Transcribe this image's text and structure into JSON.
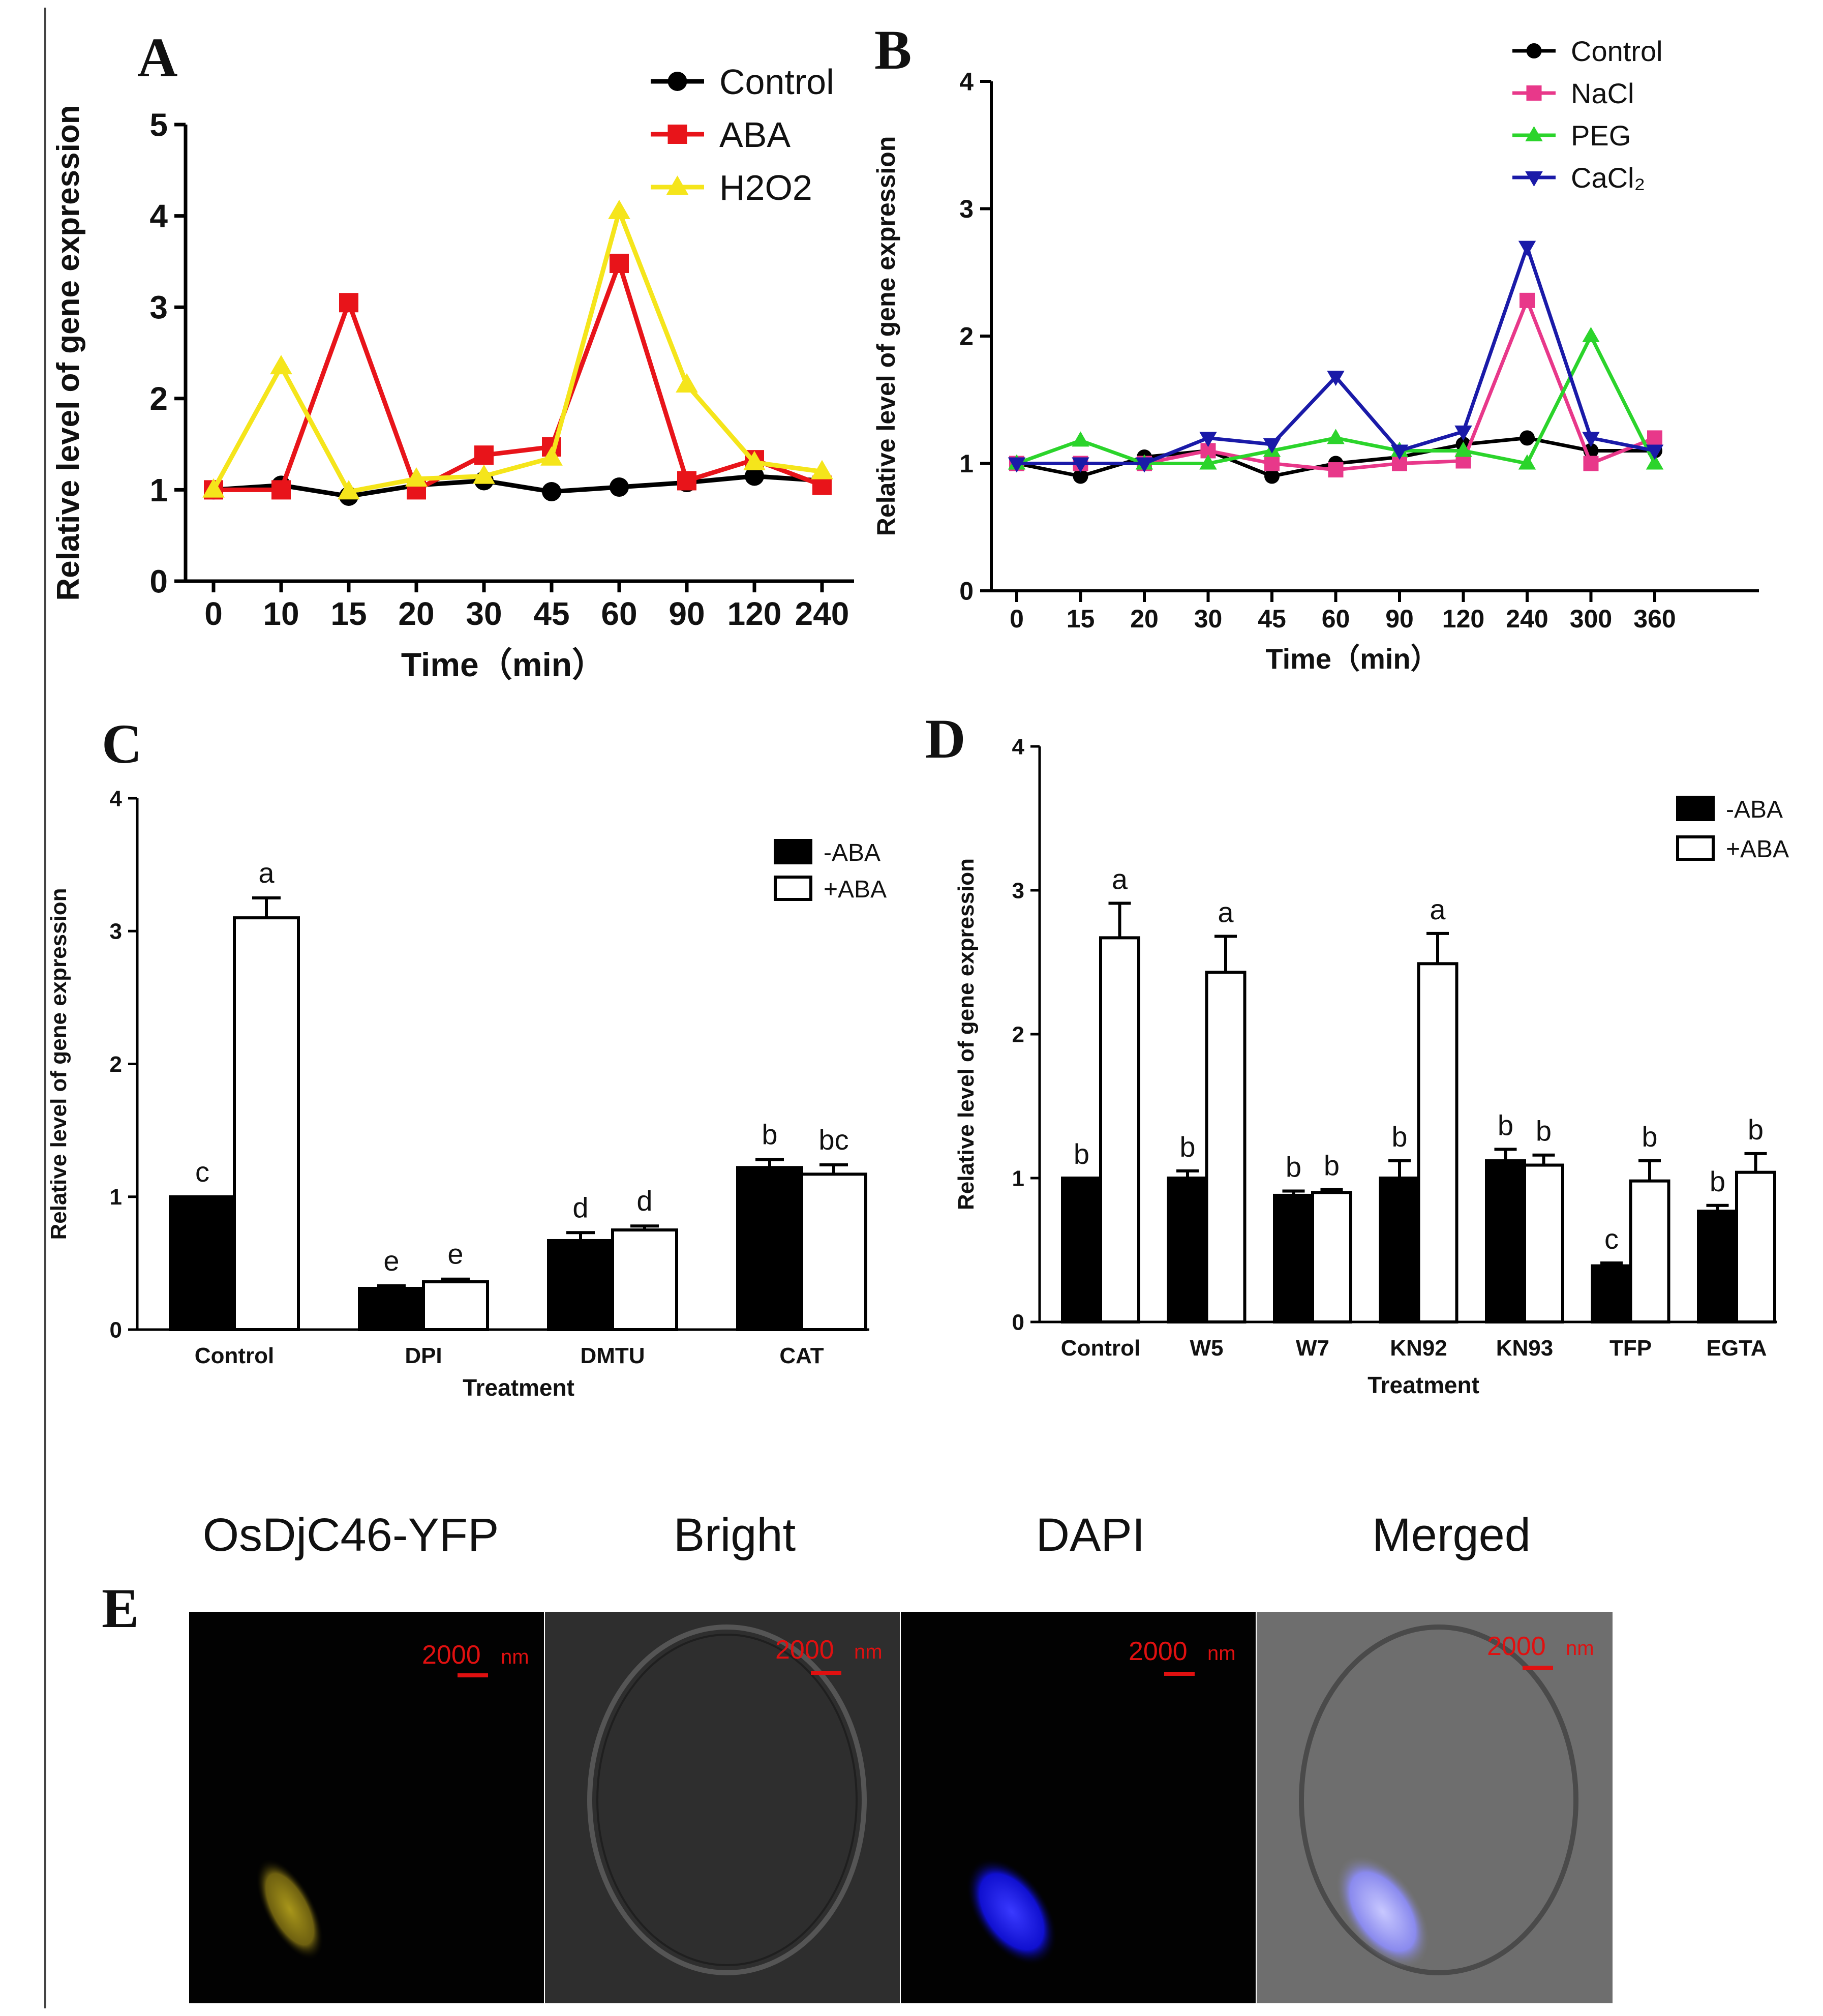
{
  "chart_data": [
    {
      "panel": "A",
      "type": "line",
      "xlabel": "Time（min）",
      "ylabel": "Relative level of gene expression",
      "categories": [
        "0",
        "10",
        "15",
        "20",
        "30",
        "45",
        "60",
        "90",
        "120",
        "240"
      ],
      "yticks": [
        "0",
        "1",
        "2",
        "3",
        "4",
        "5"
      ],
      "ylim": [
        0,
        5
      ],
      "legend_position": "top-right",
      "series": [
        {
          "name": "Control",
          "color": "#000000",
          "marker": "circle",
          "values": [
            1.0,
            1.05,
            0.93,
            1.05,
            1.1,
            0.98,
            1.03,
            1.08,
            1.15,
            1.1
          ]
        },
        {
          "name": "ABA",
          "color": "#e8141a",
          "marker": "square",
          "values": [
            1.0,
            1.0,
            3.05,
            1.0,
            1.38,
            1.47,
            3.48,
            1.1,
            1.33,
            1.05
          ]
        },
        {
          "name": "H2O2",
          "color": "#f5e51b",
          "marker": "triangle-up",
          "values": [
            1.0,
            2.35,
            0.98,
            1.12,
            1.15,
            1.35,
            4.05,
            2.15,
            1.3,
            1.2
          ]
        }
      ]
    },
    {
      "panel": "B",
      "type": "line",
      "xlabel": "Time（min）",
      "ylabel": "Relative level of gene expression",
      "categories": [
        "0",
        "15",
        "20",
        "30",
        "45",
        "60",
        "90",
        "120",
        "240",
        "300",
        "360"
      ],
      "yticks": [
        "0",
        "1",
        "2",
        "3",
        "4"
      ],
      "ylim": [
        0,
        4
      ],
      "legend_position": "top-right",
      "series": [
        {
          "name": "Control",
          "color": "#000000",
          "marker": "circle",
          "values": [
            1.0,
            0.9,
            1.05,
            1.1,
            0.9,
            1.0,
            1.05,
            1.15,
            1.2,
            1.1,
            1.1
          ]
        },
        {
          "name": "NaCl",
          "color": "#e8388a",
          "marker": "square",
          "values": [
            1.0,
            1.0,
            1.0,
            1.1,
            1.0,
            0.95,
            1.0,
            1.02,
            2.28,
            1.0,
            1.2
          ]
        },
        {
          "name": "PEG",
          "color": "#2bd42b",
          "marker": "triangle-up",
          "values": [
            1.0,
            1.18,
            1.0,
            1.0,
            1.1,
            1.2,
            1.1,
            1.1,
            1.0,
            2.0,
            1.0
          ]
        },
        {
          "name": "CaCl2",
          "color": "#1a1aa8",
          "marker": "triangle-down",
          "values": [
            1.0,
            1.0,
            1.0,
            1.2,
            1.15,
            1.68,
            1.1,
            1.25,
            2.7,
            1.2,
            1.1
          ]
        }
      ],
      "legend_labels": [
        "Control",
        "NaCl",
        "PEG",
        "CaCl₂"
      ]
    },
    {
      "panel": "C",
      "type": "bar",
      "xlabel": "Treatment",
      "ylabel": "Relative level of gene expression",
      "categories": [
        "Control",
        "DPI",
        "DMTU",
        "CAT"
      ],
      "yticks": [
        "0",
        "1",
        "2",
        "3",
        "4"
      ],
      "ylim": [
        0,
        4
      ],
      "legend_position": "top-right",
      "series": [
        {
          "name": "-ABA",
          "fill": "#000000",
          "values": [
            1.0,
            0.31,
            0.67,
            1.22
          ],
          "errors": [
            0.0,
            0.02,
            0.06,
            0.06
          ],
          "letters": [
            "c",
            "e",
            "d",
            "b"
          ]
        },
        {
          "name": "+ABA",
          "fill": "#ffffff",
          "values": [
            3.1,
            0.36,
            0.75,
            1.17
          ],
          "errors": [
            0.15,
            0.02,
            0.03,
            0.07
          ],
          "letters": [
            "a",
            "e",
            "d",
            "bc"
          ]
        }
      ]
    },
    {
      "panel": "D",
      "type": "bar",
      "xlabel": "Treatment",
      "ylabel": "Relative level of gene expression",
      "categories": [
        "Control",
        "W5",
        "W7",
        "KN92",
        "KN93",
        "TFP",
        "EGTA"
      ],
      "yticks": [
        "0",
        "1",
        "2",
        "3",
        "4"
      ],
      "ylim": [
        0,
        4
      ],
      "legend_position": "top-right",
      "series": [
        {
          "name": "-ABA",
          "fill": "#000000",
          "values": [
            1.0,
            1.0,
            0.88,
            1.0,
            1.12,
            0.39,
            0.77
          ],
          "errors": [
            0.0,
            0.05,
            0.03,
            0.12,
            0.08,
            0.02,
            0.04
          ],
          "letters": [
            "b",
            "b",
            "b",
            "b",
            "b",
            "c",
            "b"
          ]
        },
        {
          "name": "+ABA",
          "fill": "#ffffff",
          "values": [
            2.67,
            2.43,
            0.9,
            2.49,
            1.09,
            0.98,
            1.04
          ],
          "errors": [
            0.24,
            0.25,
            0.02,
            0.21,
            0.07,
            0.14,
            0.13
          ],
          "letters": [
            "a",
            "a",
            "b",
            "a",
            "b",
            "b",
            "b"
          ]
        }
      ]
    }
  ],
  "panel_letters": {
    "A": "A",
    "B": "B",
    "C": "C",
    "D": "D",
    "E": "E"
  },
  "panel_e": {
    "titles": [
      "OsDjC46-YFP",
      "Bright",
      "DAPI",
      "Merged"
    ],
    "scale_value": "2000",
    "scale_unit": "nm",
    "colors": {
      "yfp": "#8a7a10",
      "dapi": "#1a1aff",
      "merged": "#9a9aff"
    }
  }
}
